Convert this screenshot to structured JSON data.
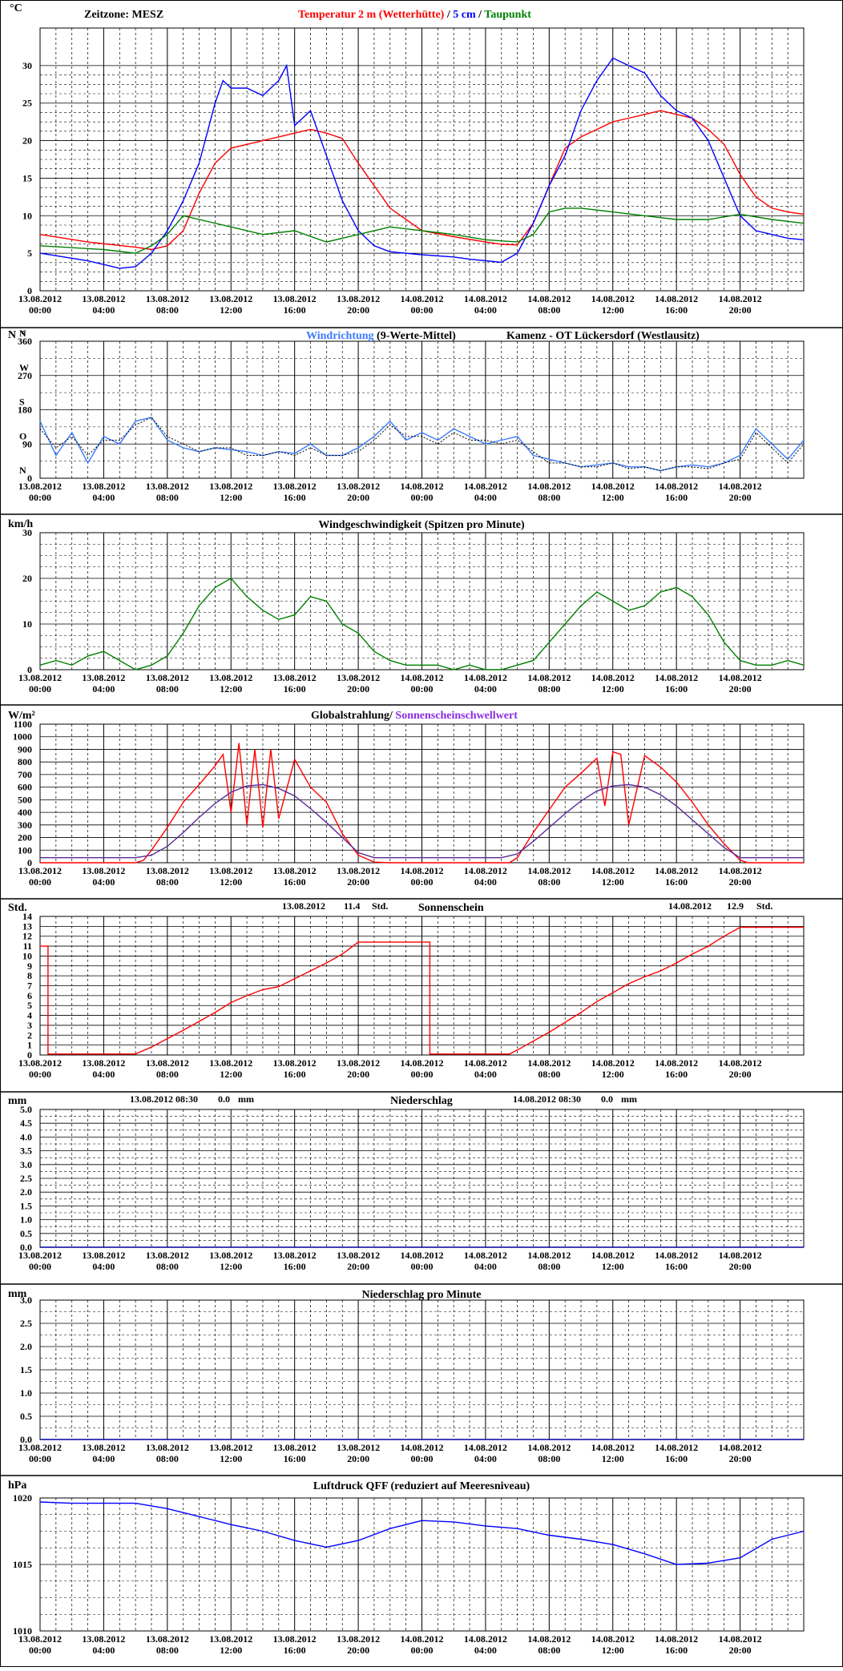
{
  "colors": {
    "temp2m": "#ff0000",
    "temp5cm": "#0000ff",
    "dewpoint": "#008000",
    "winddir_mean": "#3a7bff",
    "winddir_raw": "#000000",
    "wind": "#008000",
    "radiation": "#ff0000",
    "threshold": "#5a2b9a",
    "sunshine": "#ff0000",
    "precip": "#0000a0",
    "pressure": "#0000ff",
    "title_wind": "#3a7bff",
    "title_threshold": "#8a2be2"
  },
  "xaxis": {
    "dates": [
      "13.08.2012",
      "13.08.2012",
      "13.08.2012",
      "13.08.2012",
      "13.08.2012",
      "13.08.2012",
      "14.08.2012",
      "14.08.2012",
      "14.08.2012",
      "14.08.2012",
      "14.08.2012",
      "14.08.2012"
    ],
    "times": [
      "00:00",
      "04:00",
      "08:00",
      "12:00",
      "16:00",
      "20:00",
      "00:00",
      "04:00",
      "08:00",
      "12:00",
      "16:00",
      "20:00"
    ]
  },
  "chart_data": [
    {
      "id": "temperature",
      "type": "line",
      "unit": "°C",
      "timezone_label": "Zeitzone:  MESZ",
      "title_parts": [
        "Temperatur 2 m (Wetterhütte)",
        "  /  ",
        "5 cm",
        " / ",
        "Taupunkt"
      ],
      "ylim": [
        0,
        35
      ],
      "yticks": [
        0,
        5,
        10,
        15,
        20,
        25,
        30
      ],
      "series": [
        {
          "name": "Temperatur 2 m (Wetterhütte)",
          "t": [
            0,
            3,
            6,
            7,
            8,
            9,
            10,
            11,
            12,
            14,
            15,
            16,
            17,
            18,
            19,
            20,
            22,
            24,
            26,
            28,
            29,
            30,
            31,
            32,
            33,
            34,
            35,
            36,
            37,
            38,
            39,
            40,
            41,
            42,
            43,
            44,
            45,
            46,
            47,
            48
          ],
          "values": [
            7.5,
            6.5,
            5.8,
            5.5,
            6.0,
            8,
            13,
            17,
            19,
            20,
            20.5,
            21,
            21.5,
            21,
            20.3,
            17,
            11,
            8,
            7.2,
            6.5,
            6.2,
            6.1,
            9,
            14,
            19,
            20.5,
            21.5,
            22.5,
            23,
            23.5,
            24,
            23.5,
            23,
            21.5,
            19.5,
            15.5,
            12.5,
            11,
            10.5,
            10.2
          ]
        },
        {
          "name": "5 cm",
          "t": [
            0,
            3,
            4,
            5,
            6,
            7,
            8,
            8.5,
            9,
            10,
            11,
            11.5,
            12,
            13,
            14,
            15,
            15.5,
            16,
            17,
            18,
            19,
            20,
            21,
            22,
            24,
            26,
            27,
            28,
            29,
            30,
            31,
            32,
            33,
            34,
            35,
            36,
            37,
            38,
            39,
            40,
            41,
            42,
            43,
            44,
            45,
            46,
            47,
            48
          ],
          "values": [
            5,
            4,
            3.5,
            3,
            3.2,
            5,
            8,
            10,
            12,
            17,
            25,
            28,
            27,
            27,
            26,
            28,
            30,
            22,
            24,
            18,
            12,
            8,
            6,
            5.2,
            4.8,
            4.5,
            4.2,
            4,
            3.8,
            5,
            9,
            14,
            18,
            24,
            28,
            31,
            30,
            29,
            26,
            24,
            23,
            20,
            15,
            10,
            8,
            7.5,
            7,
            6.8
          ]
        },
        {
          "name": "Taupunkt",
          "t": [
            0,
            4,
            6,
            7,
            8,
            9,
            10,
            12,
            14,
            16,
            18,
            20,
            22,
            24,
            26,
            28,
            30,
            31,
            32,
            33,
            34,
            36,
            38,
            40,
            42,
            44,
            46,
            48
          ],
          "values": [
            6,
            5.5,
            5,
            6,
            7.5,
            10,
            9.5,
            8.5,
            7.5,
            8,
            6.5,
            7.5,
            8.5,
            8,
            7.5,
            6.8,
            6.5,
            7.5,
            10.5,
            11,
            11,
            10.5,
            10,
            9.5,
            9.5,
            10.2,
            9.5,
            9
          ]
        }
      ]
    },
    {
      "id": "wind_direction",
      "type": "line",
      "unit_top": "N",
      "unit_deg": "°",
      "title": "Windrichtung",
      "title_suffix": " (9-Werte-Mittel)",
      "station": "Kamenz - OT Lückersdorf (Westlausitz)",
      "ylim": [
        0,
        360
      ],
      "yticks": [
        0,
        90,
        180,
        270,
        360
      ],
      "direction_labels": [
        {
          "letter": "N",
          "value": 0
        },
        {
          "letter": "O",
          "value": 90
        },
        {
          "letter": "S",
          "value": 180
        },
        {
          "letter": "W",
          "value": 270
        },
        {
          "letter": "N",
          "value": 360
        }
      ],
      "series": [
        {
          "name": "Windrichtung (9-Werte-Mittel)",
          "t": [
            0,
            1,
            2,
            3,
            4,
            5,
            6,
            7,
            8,
            9,
            10,
            11,
            12,
            13,
            14,
            15,
            16,
            17,
            18,
            19,
            20,
            21,
            22,
            23,
            24,
            25,
            26,
            27,
            28,
            29,
            30,
            31,
            32,
            33,
            34,
            35,
            36,
            37,
            38,
            39,
            40,
            41,
            42,
            43,
            44,
            45,
            46,
            47,
            48
          ],
          "values": [
            150,
            60,
            120,
            40,
            110,
            90,
            150,
            160,
            100,
            80,
            70,
            80,
            75,
            70,
            60,
            70,
            65,
            90,
            60,
            60,
            80,
            110,
            150,
            100,
            120,
            100,
            130,
            110,
            90,
            100,
            110,
            60,
            50,
            40,
            30,
            35,
            40,
            30,
            30,
            20,
            30,
            35,
            30,
            40,
            60,
            130,
            90,
            50,
            100
          ]
        },
        {
          "name": "raw",
          "t": [
            0,
            1,
            2,
            3,
            4,
            5,
            6,
            7,
            8,
            9,
            10,
            11,
            12,
            13,
            14,
            15,
            16,
            17,
            18,
            19,
            20,
            21,
            22,
            23,
            24,
            25,
            26,
            27,
            28,
            29,
            30,
            31,
            32,
            33,
            34,
            35,
            36,
            37,
            38,
            39,
            40,
            41,
            42,
            43,
            44,
            45,
            46,
            47,
            48
          ],
          "values": [
            130,
            80,
            110,
            60,
            100,
            100,
            140,
            160,
            110,
            90,
            70,
            80,
            80,
            60,
            60,
            70,
            60,
            80,
            60,
            60,
            70,
            100,
            140,
            110,
            110,
            90,
            120,
            100,
            100,
            90,
            100,
            70,
            40,
            40,
            30,
            30,
            40,
            25,
            30,
            20,
            30,
            30,
            25,
            40,
            50,
            120,
            80,
            40,
            90
          ]
        }
      ]
    },
    {
      "id": "wind_speed",
      "type": "line",
      "unit": "km/h",
      "title": "Windgeschwindigkeit (Spitzen pro Minute)",
      "ylim": [
        0,
        30
      ],
      "yticks": [
        0,
        10,
        20,
        30
      ],
      "series": [
        {
          "name": "Windgeschwindigkeit (Spitzen pro Minute)",
          "t": [
            0,
            1,
            2,
            3,
            4,
            5,
            6,
            7,
            8,
            9,
            10,
            11,
            12,
            13,
            14,
            15,
            16,
            17,
            18,
            19,
            20,
            21,
            22,
            23,
            24,
            25,
            26,
            27,
            28,
            29,
            30,
            31,
            32,
            33,
            34,
            35,
            36,
            37,
            38,
            39,
            40,
            41,
            42,
            43,
            44,
            45,
            46,
            47,
            48
          ],
          "values": [
            1,
            2,
            1,
            3,
            4,
            2,
            0,
            1,
            3,
            8,
            14,
            18,
            20,
            16,
            13,
            11,
            12,
            16,
            15,
            10,
            8,
            4,
            2,
            1,
            1,
            1,
            0,
            1,
            0,
            0,
            1,
            2,
            6,
            10,
            14,
            17,
            15,
            13,
            14,
            17,
            18,
            16,
            12,
            6,
            2,
            1,
            1,
            2,
            1
          ]
        }
      ]
    },
    {
      "id": "radiation",
      "type": "line",
      "unit": "W/m²",
      "title": "Globalstrahlung/",
      "title_suffix": " Sonnenscheinschwellwert",
      "ylim": [
        0,
        1100
      ],
      "yticks": [
        0,
        100,
        200,
        300,
        400,
        500,
        600,
        700,
        800,
        900,
        1000,
        1100
      ],
      "series": [
        {
          "name": "Globalstrahlung",
          "t": [
            0,
            6,
            6.5,
            7,
            8,
            9,
            10,
            11,
            11.5,
            12,
            12.5,
            13,
            13.5,
            14,
            14.5,
            15,
            16,
            17,
            18,
            19,
            20,
            21,
            22,
            24,
            28,
            29.5,
            30,
            31,
            32,
            33,
            34,
            35,
            35.5,
            36,
            36.5,
            37,
            38,
            39,
            40,
            41,
            42,
            43,
            44,
            44.5,
            45,
            48
          ],
          "values": [
            0,
            0,
            20,
            100,
            280,
            480,
            620,
            770,
            860,
            400,
            950,
            300,
            900,
            280,
            900,
            350,
            820,
            600,
            480,
            230,
            60,
            5,
            0,
            0,
            0,
            0,
            40,
            240,
            420,
            600,
            710,
            830,
            450,
            880,
            860,
            300,
            850,
            760,
            640,
            480,
            300,
            150,
            20,
            0,
            0,
            0
          ]
        },
        {
          "name": "Sonnenscheinschwellwert",
          "t": [
            0,
            6,
            7,
            8,
            9,
            10,
            11,
            12,
            13,
            14,
            15,
            16,
            17,
            18,
            19,
            20,
            21,
            22,
            24,
            29,
            30,
            31,
            32,
            33,
            34,
            35,
            36,
            37,
            38,
            39,
            40,
            41,
            42,
            43,
            44,
            45,
            48
          ],
          "values": [
            40,
            40,
            60,
            130,
            240,
            360,
            470,
            560,
            610,
            620,
            590,
            530,
            430,
            320,
            200,
            80,
            40,
            40,
            40,
            40,
            70,
            170,
            280,
            390,
            490,
            570,
            610,
            620,
            600,
            540,
            450,
            340,
            230,
            120,
            40,
            40,
            40
          ]
        }
      ]
    },
    {
      "id": "sunshine",
      "type": "line",
      "unit": "Std.",
      "title": "Sonnenschein",
      "day1_date": "13.08.2012",
      "day1_value": "11.4",
      "day1_unit": "Std.",
      "day2_date": "14.08.2012",
      "day2_value": "12.9",
      "day2_unit": "Std.",
      "ylim": [
        0,
        14
      ],
      "yticks": [
        0,
        1,
        2,
        3,
        4,
        5,
        6,
        7,
        8,
        9,
        10,
        11,
        12,
        13,
        14
      ],
      "series": [
        {
          "name": "Sonnenschein",
          "t": [
            0,
            0.5,
            0.5,
            6.0,
            7,
            9,
            11,
            12,
            13,
            14,
            15,
            16,
            17,
            18,
            19,
            20,
            24,
            24.5,
            24.5,
            29.5,
            30,
            32,
            34,
            35,
            36,
            37,
            38,
            39,
            40,
            41,
            42,
            43,
            44,
            48
          ],
          "values": [
            11,
            11,
            0.1,
            0.1,
            0.8,
            2.5,
            4.3,
            5.3,
            6.0,
            6.6,
            6.9,
            7.7,
            8.5,
            9.3,
            10.2,
            11.4,
            11.4,
            11.4,
            0.1,
            0.1,
            0.5,
            2.3,
            4.3,
            5.4,
            6.3,
            7.2,
            7.9,
            8.5,
            9.3,
            10.2,
            11.0,
            12.0,
            12.9,
            12.9
          ]
        }
      ]
    },
    {
      "id": "precipitation",
      "type": "line",
      "unit": "mm",
      "title": "Niederschlag",
      "day1_date": "13.08.2012 08:30",
      "day1_value": "0.0",
      "day1_unit": "mm",
      "day2_date": "14.08.2012 08:30",
      "day2_value": "0.0",
      "day2_unit": "mm",
      "ylim": [
        0,
        5
      ],
      "yticks": [
        0,
        0.5,
        1,
        1.5,
        2,
        2.5,
        3,
        3.5,
        4,
        4.5,
        5
      ],
      "ytick_labels": [
        "0.0",
        "0.5",
        "1.0",
        "1.5",
        "2.0",
        "2.5",
        "3.0",
        "3.5",
        "4.0",
        "4.5",
        "5.0"
      ],
      "series": [
        {
          "name": "Niederschlag",
          "t": [
            0,
            48
          ],
          "values": [
            0,
            0
          ]
        }
      ]
    },
    {
      "id": "precipitation_minute",
      "type": "line",
      "unit": "mm",
      "title": "Niederschlag pro Minute",
      "ylim": [
        0,
        3
      ],
      "yticks": [
        0,
        0.5,
        1,
        1.5,
        2,
        2.5,
        3
      ],
      "ytick_labels": [
        "0.0",
        "0.5",
        "1.0",
        "1.5",
        "2.0",
        "2.5",
        "3.0"
      ],
      "series": [
        {
          "name": "Niederschlag pro Minute",
          "t": [
            0,
            48
          ],
          "values": [
            0,
            0
          ]
        }
      ]
    },
    {
      "id": "pressure",
      "type": "line",
      "unit": "hPa",
      "title": "Luftdruck QFF (reduziert auf Meeresniveau)",
      "ylim": [
        1010,
        1020
      ],
      "yticks": [
        1010,
        1015,
        1020
      ],
      "series": [
        {
          "name": "Luftdruck QFF (reduziert auf Meeresniveau)",
          "t": [
            0,
            2,
            4,
            6,
            8,
            10,
            12,
            14,
            16,
            18,
            20,
            22,
            24,
            26,
            28,
            30,
            32,
            34,
            36,
            38,
            40,
            42,
            44,
            46,
            48
          ],
          "values": [
            1019.7,
            1019.6,
            1019.6,
            1019.6,
            1019.2,
            1018.6,
            1018.0,
            1017.5,
            1016.8,
            1016.3,
            1016.8,
            1017.7,
            1018.3,
            1018.2,
            1017.9,
            1017.7,
            1017.2,
            1016.9,
            1016.5,
            1015.8,
            1015.0,
            1015.1,
            1015.5,
            1016.9,
            1017.5
          ]
        }
      ]
    }
  ]
}
